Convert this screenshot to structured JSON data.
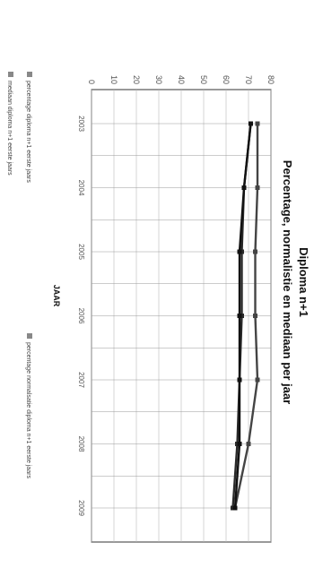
{
  "chart_data": {
    "type": "line",
    "title": "Diploma n+1",
    "subtitle": "Percentage, normalistie en mediaan per jaar",
    "xlabel": "JAAR",
    "ylabel": "",
    "categories": [
      "2003",
      "2004",
      "2005",
      "2006",
      "2007",
      "2008",
      "2009"
    ],
    "ylim": [
      0,
      80
    ],
    "yticks": [
      0,
      10,
      20,
      30,
      40,
      50,
      60,
      70,
      80
    ],
    "grid": true,
    "legend_position": "bottom",
    "series": [
      {
        "name": "percentage diploma n+1 eerste jaars",
        "values": [
          74,
          74,
          73,
          73,
          74,
          70,
          64
        ],
        "color": "#444444"
      },
      {
        "name": "percentage normalsatie diploma n+1 eerste jaars",
        "values": [
          71,
          68,
          67,
          67,
          66,
          65,
          63
        ],
        "color": "#2a2a2a"
      },
      {
        "name": "mediaan diploma n+1 eerste jaars",
        "values": [
          71,
          68,
          66,
          66,
          66,
          66,
          64
        ],
        "color": "#111111"
      }
    ]
  }
}
